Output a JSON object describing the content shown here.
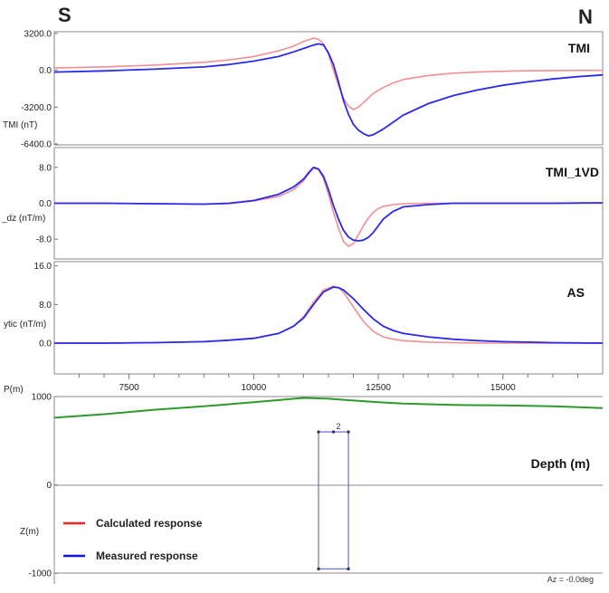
{
  "direction_left": "S",
  "direction_right": "N",
  "colors": {
    "calculated": "#f28f95",
    "measured": "#2a2ae8",
    "topography": "#2e9a2e",
    "body": "#6b6bdc",
    "legend_calculated": "#ff2020",
    "legend_measured": "#1010ff"
  },
  "legend": {
    "calculated": "Calculated response",
    "measured": "Measured response"
  },
  "x_ticks": [
    "7500",
    "10000",
    "12500",
    "15000"
  ],
  "chart_data": [
    {
      "type": "line",
      "title": "TMI",
      "ylabel": "TMI (nT)",
      "xlim": [
        6000,
        17000
      ],
      "ylim": [
        -6400,
        3200
      ],
      "yticks": [
        "3200.0",
        "0.0",
        "-3200.0",
        "-6400.0"
      ],
      "x": [
        6000,
        7000,
        8000,
        9000,
        9500,
        10000,
        10500,
        10800,
        11000,
        11200,
        11300,
        11400,
        11500,
        11600,
        11700,
        11800,
        11900,
        12000,
        12100,
        12200,
        12300,
        12400,
        12600,
        12800,
        13000,
        13500,
        14000,
        14500,
        15000,
        15500,
        16000,
        16500,
        17000
      ],
      "series": [
        {
          "name": "Calculated response",
          "values": [
            200,
            300,
            450,
            700,
            900,
            1200,
            1700,
            2100,
            2500,
            2800,
            2700,
            2300,
            1400,
            0,
            -1300,
            -2400,
            -3100,
            -3400,
            -3200,
            -2800,
            -2400,
            -2000,
            -1500,
            -1100,
            -800,
            -450,
            -250,
            -150,
            -80,
            -40,
            -20,
            -10,
            0
          ]
        },
        {
          "name": "Measured response",
          "values": [
            -150,
            -50,
            100,
            300,
            500,
            800,
            1200,
            1600,
            1900,
            2200,
            2300,
            2200,
            1500,
            500,
            -1000,
            -2600,
            -3800,
            -4700,
            -5200,
            -5500,
            -5700,
            -5600,
            -5100,
            -4500,
            -3900,
            -2900,
            -2200,
            -1700,
            -1300,
            -1000,
            -750,
            -550,
            -400
          ]
        }
      ]
    },
    {
      "type": "line",
      "title": "TMI_1VD",
      "ylabel": "_dz (nT/m)",
      "xlim": [
        6000,
        17000
      ],
      "ylim": [
        -12,
        12
      ],
      "yticks": [
        "8.0",
        "0.0",
        "-8.0"
      ],
      "x": [
        6000,
        7000,
        8000,
        9000,
        9500,
        10000,
        10500,
        10800,
        11000,
        11100,
        11200,
        11300,
        11400,
        11500,
        11600,
        11700,
        11800,
        11900,
        12000,
        12100,
        12200,
        12300,
        12400,
        12500,
        12600,
        12800,
        13000,
        13500,
        14000,
        15000,
        16000,
        17000
      ],
      "series": [
        {
          "name": "Calculated response",
          "values": [
            0,
            0,
            -0.1,
            -0.2,
            -0.1,
            0.5,
            1.5,
            3,
            5,
            6.5,
            7.8,
            7.5,
            5.5,
            2,
            -2,
            -5.5,
            -8.5,
            -9.6,
            -9,
            -7,
            -5,
            -3.3,
            -2,
            -1.2,
            -0.7,
            -0.3,
            -0.1,
            0,
            0,
            0,
            0,
            0
          ]
        },
        {
          "name": "Measured response",
          "values": [
            0,
            0,
            -0.1,
            -0.2,
            0,
            0.6,
            2,
            3.6,
            5.4,
            6.8,
            8,
            7.6,
            6,
            3,
            -0.5,
            -3.5,
            -6,
            -7.5,
            -8.2,
            -8.4,
            -8.2,
            -7.6,
            -6.5,
            -5,
            -3.5,
            -1.8,
            -0.8,
            -0.3,
            0,
            0,
            0,
            0.1
          ]
        }
      ]
    },
    {
      "type": "line",
      "title": "AS",
      "ylabel": "ytic (nT/m)",
      "xlim": [
        6000,
        17000
      ],
      "ylim": [
        -6,
        16.5
      ],
      "yticks": [
        "16.0",
        "8.0",
        "0.0"
      ],
      "x": [
        6000,
        7000,
        8000,
        9000,
        9500,
        10000,
        10500,
        10800,
        11000,
        11200,
        11400,
        11600,
        11700,
        11800,
        12000,
        12200,
        12400,
        12600,
        12800,
        13000,
        13500,
        14000,
        14500,
        15000,
        15500,
        16000,
        17000
      ],
      "series": [
        {
          "name": "Calculated response",
          "values": [
            0,
            0,
            0.1,
            0.3,
            0.6,
            1,
            2,
            3.5,
            5.5,
            8.5,
            11,
            11.8,
            11.5,
            10.6,
            7.5,
            4.5,
            2.4,
            1.3,
            0.8,
            0.5,
            0.2,
            0.1,
            0,
            0,
            0,
            0,
            0
          ]
        },
        {
          "name": "Measured response",
          "values": [
            0,
            0,
            0.1,
            0.3,
            0.6,
            1,
            2,
            3.5,
            5.2,
            8,
            10.6,
            11.6,
            11.5,
            11,
            9.2,
            7,
            5,
            3.5,
            2.6,
            2,
            1.3,
            0.8,
            0.5,
            0.3,
            0.2,
            0.1,
            0
          ]
        }
      ]
    },
    {
      "type": "line",
      "title": "Depth (m)",
      "ylabel": "Z(m)",
      "ylabel_top": "P(m)",
      "xlim": [
        6000,
        17000
      ],
      "ylim": [
        -1100,
        1000
      ],
      "yticks": [
        "1000",
        "0",
        "-1000"
      ],
      "x": [
        6000,
        7000,
        8000,
        9000,
        10000,
        10500,
        11000,
        11500,
        12000,
        12500,
        13000,
        14000,
        15000,
        16000,
        17000
      ],
      "series": [
        {
          "name": "topography",
          "values": [
            760,
            800,
            850,
            890,
            935,
            960,
            985,
            975,
            955,
            935,
            920,
            905,
            900,
            890,
            870
          ]
        }
      ],
      "body": {
        "label": "2",
        "x_range": [
          11300,
          11900
        ],
        "depth_top": 600,
        "depth_bottom": -950
      },
      "annotation": "Az = -0.0deg"
    }
  ]
}
